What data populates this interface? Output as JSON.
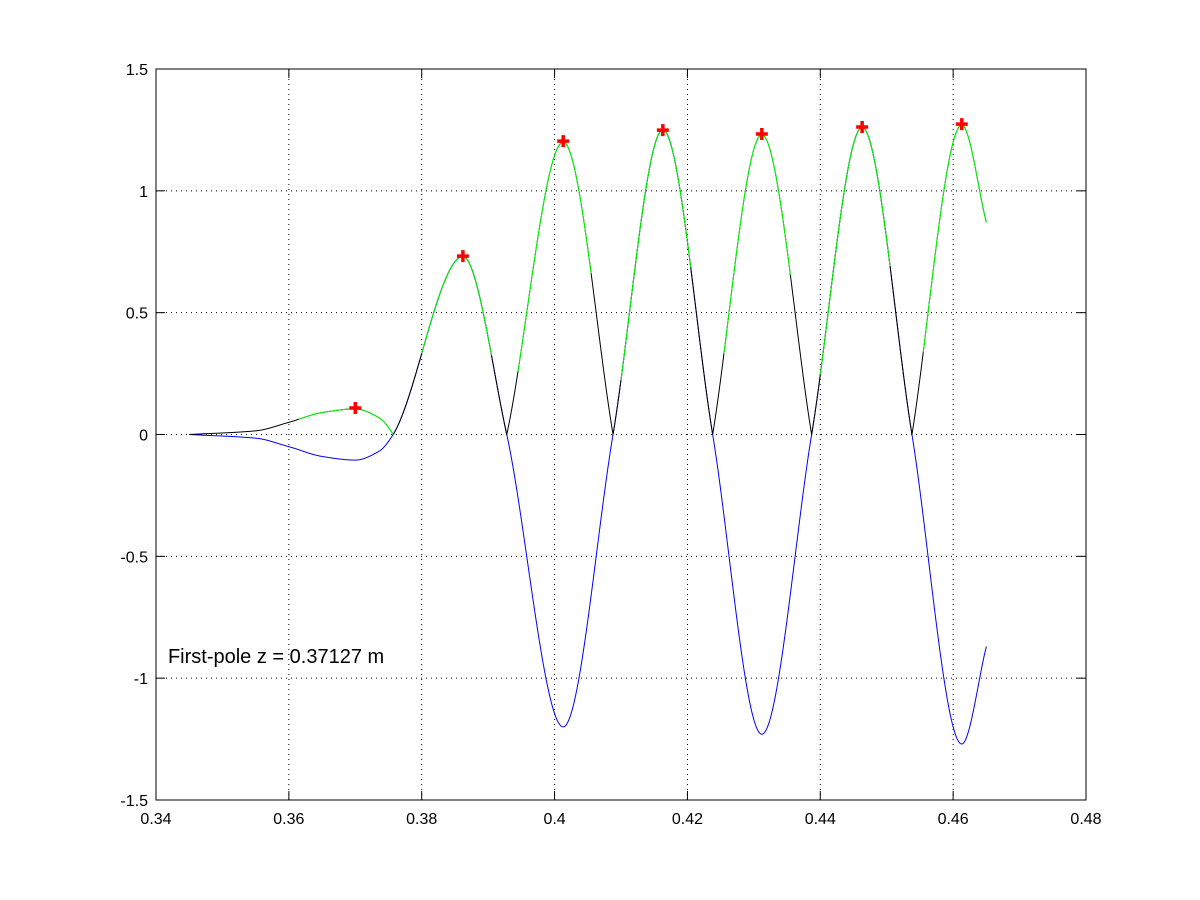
{
  "chart_data": {
    "type": "line",
    "title": "",
    "xlabel": "",
    "ylabel": "",
    "xlim": [
      0.34,
      0.48
    ],
    "ylim": [
      -1.5,
      1.5
    ],
    "xticks": [
      0.34,
      0.36,
      0.38,
      0.4,
      0.42,
      0.44,
      0.46,
      0.48
    ],
    "xtick_labels": [
      "0.34",
      "0.36",
      "0.38",
      "0.4",
      "0.42",
      "0.44",
      "0.46",
      "0.48"
    ],
    "yticks": [
      -1.5,
      -1,
      -0.5,
      0,
      0.5,
      1,
      1.5
    ],
    "ytick_labels": [
      "-1.5",
      "-1",
      "-0.5",
      "0",
      "0.5",
      "1",
      "1.5"
    ],
    "grid": true,
    "grid_style": "dotted",
    "colors": {
      "signal": "#0000ff",
      "magnitude": "#000000",
      "highlight": "#00ff00",
      "peaks": "#ff0000"
    },
    "signal_points": [
      [
        0.345,
        0
      ],
      [
        0.355,
        -0.015
      ],
      [
        0.36,
        -0.05
      ],
      [
        0.365,
        -0.09
      ],
      [
        0.37,
        -0.105
      ],
      [
        0.3735,
        -0.07
      ],
      [
        0.3757,
        0
      ],
      [
        0.3862,
        0.73
      ],
      [
        0.3928,
        0
      ],
      [
        0.4013,
        -1.2
      ],
      [
        0.4088,
        0
      ],
      [
        0.4163,
        1.25
      ],
      [
        0.4238,
        0
      ],
      [
        0.4312,
        -1.23
      ],
      [
        0.4387,
        0
      ],
      [
        0.4463,
        1.26
      ],
      [
        0.4538,
        0
      ],
      [
        0.4613,
        -1.27
      ],
      [
        0.465,
        -0.87
      ]
    ],
    "highlight_ranges": [
      [
        0.3615,
        0.3757
      ],
      [
        0.38,
        0.3905
      ],
      [
        0.3945,
        0.4055
      ],
      [
        0.41,
        0.4205
      ],
      [
        0.4255,
        0.4355
      ],
      [
        0.44,
        0.4505
      ],
      [
        0.4555,
        0.465
      ]
    ],
    "peaks": [
      [
        0.37,
        0.109
      ],
      [
        0.3862,
        0.732
      ],
      [
        0.4013,
        1.204
      ],
      [
        0.4163,
        1.249
      ],
      [
        0.4312,
        1.233
      ],
      [
        0.4463,
        1.262
      ],
      [
        0.4613,
        1.274
      ]
    ],
    "annotation": {
      "text": "First-pole z = 0.37127 m",
      "x": 0.3418,
      "y": -0.91
    }
  }
}
